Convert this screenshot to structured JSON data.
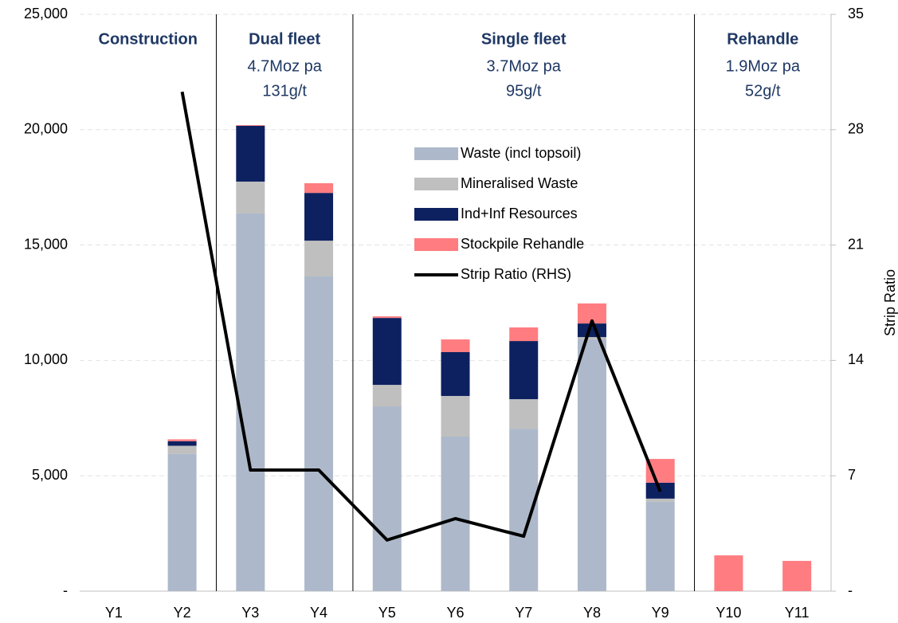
{
  "chart_data": {
    "type": "bar",
    "stacked": true,
    "categories": [
      "Y1",
      "Y2",
      "Y3",
      "Y4",
      "Y5",
      "Y6",
      "Y7",
      "Y8",
      "Y9",
      "Y10",
      "Y11"
    ],
    "series": [
      {
        "name": "Waste (incl topsoil)",
        "color": "#adb9ca",
        "values": [
          0,
          5950,
          16370,
          13640,
          8010,
          6700,
          7040,
          10910,
          3870,
          0,
          0
        ]
      },
      {
        "name": "Mineralised Waste",
        "color": "#bfbfbf",
        "values": [
          0,
          350,
          1380,
          1550,
          930,
          1760,
          1280,
          100,
          140,
          0,
          0
        ]
      },
      {
        "name": "Ind+Inf Resources",
        "color": "#0d2160",
        "values": [
          0,
          200,
          2420,
          2070,
          2900,
          1900,
          2520,
          590,
          690,
          0,
          0
        ]
      },
      {
        "name": "Stockpile Rehandle",
        "color": "#ff7c80",
        "values": [
          0,
          80,
          30,
          420,
          70,
          550,
          590,
          870,
          1030,
          1550,
          1310
        ]
      },
      {
        "name": "Strip Ratio (RHS)",
        "color": "#000000",
        "type": "line",
        "axis": "y2",
        "values": [
          null,
          30.3,
          7.35,
          7.35,
          3.1,
          4.4,
          3.33,
          16.4,
          6.04,
          null,
          null
        ]
      }
    ],
    "ylim": [
      0,
      25000
    ],
    "yticks": [
      {
        "value": 0,
        "label": "-"
      },
      {
        "value": 5000,
        "label": "5,000"
      },
      {
        "value": 10000,
        "label": "10,000"
      },
      {
        "value": 15000,
        "label": "15,000"
      },
      {
        "value": 20000,
        "label": "20,000"
      },
      {
        "value": 25000,
        "label": "25,000"
      }
    ],
    "y2lim": [
      0,
      35
    ],
    "y2ticks": [
      {
        "value": 0,
        "label": "-"
      },
      7,
      14,
      21,
      28,
      35
    ],
    "y2label": "Strip Ratio",
    "grid": true,
    "phases": [
      {
        "title": "Construction",
        "lines": []
      },
      {
        "title": "Dual fleet",
        "lines": [
          "4.7Moz pa",
          "131g/t"
        ]
      },
      {
        "title": "Single fleet",
        "lines": [
          "3.7Moz pa",
          "95g/t"
        ]
      },
      {
        "title": "Rehandle",
        "lines": [
          "1.9Moz pa",
          "52g/t"
        ]
      }
    ]
  }
}
